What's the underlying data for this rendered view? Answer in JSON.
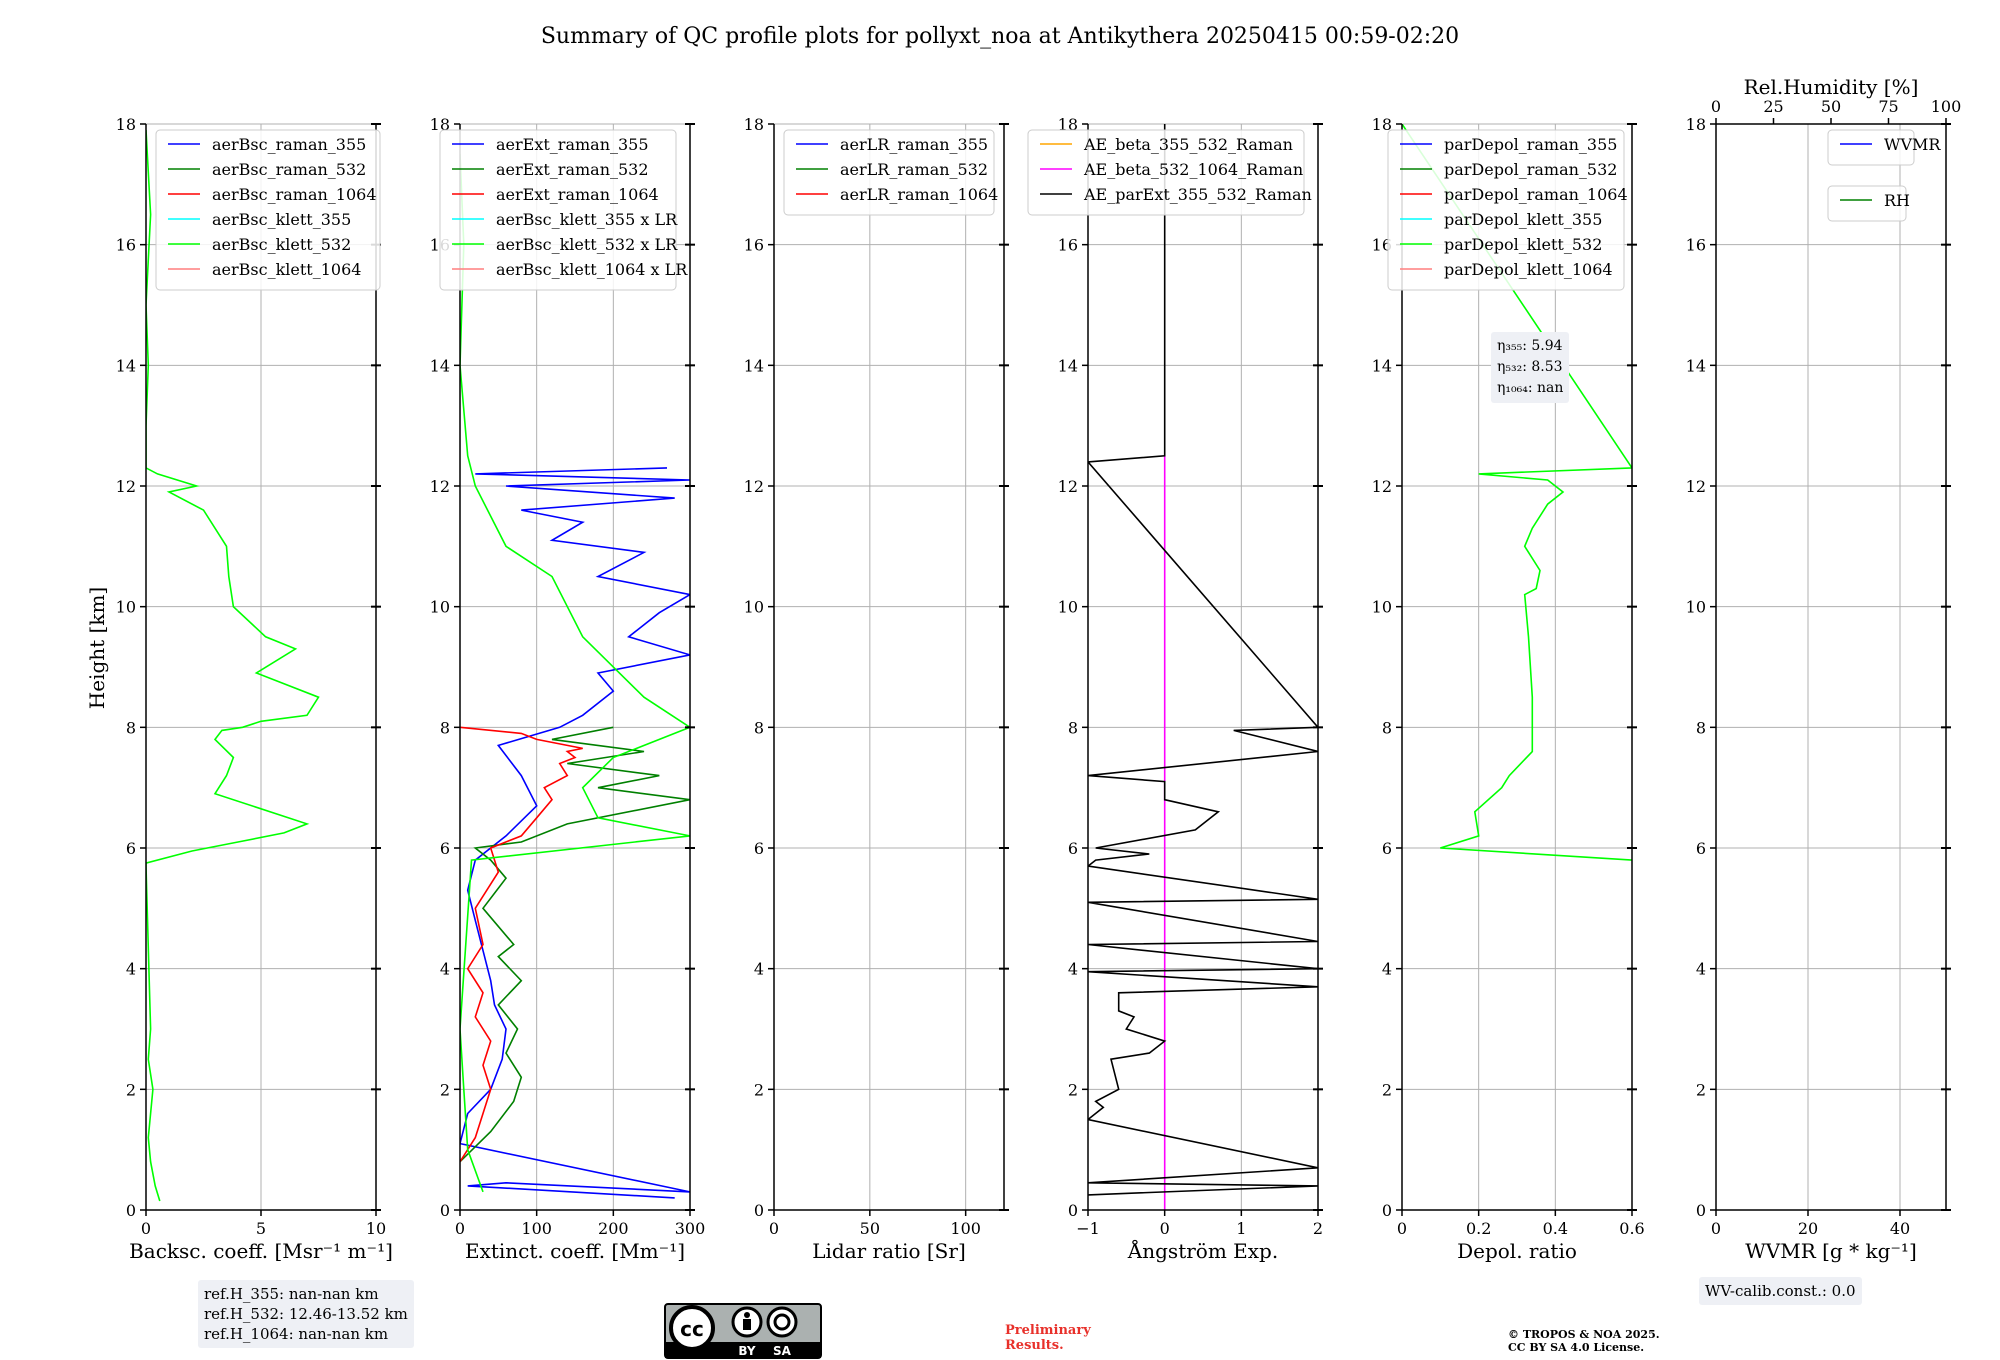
{
  "title": "Summary of QC profile plots for pollyxt_noa at Antikythera 20250415 00:59-02:20",
  "y_axis_label": "Height [km]",
  "chart_data": [
    {
      "type": "line",
      "xlabel": "Backsc. coeff. [Msr⁻¹ m⁻¹]",
      "xlim": [
        0,
        10
      ],
      "xticks": [
        0,
        5,
        10
      ],
      "ylim": [
        0,
        18
      ],
      "yticks": [
        0,
        2,
        4,
        6,
        8,
        10,
        12,
        14,
        16,
        18
      ],
      "legend": [
        "aerBsc_raman_355",
        "aerBsc_raman_532",
        "aerBsc_raman_1064",
        "aerBsc_klett_355",
        "aerBsc_klett_532",
        "aerBsc_klett_1064"
      ],
      "legend_colors": [
        "#0000ff",
        "#008000",
        "#ff0000",
        "#00ffff",
        "#00ff00",
        "#ff7f7f"
      ],
      "series": [
        {
          "name": "aerBsc_klett_532",
          "color": "#00ff00",
          "x": [
            0.6,
            0.4,
            0.2,
            0.1,
            0.3,
            0.1,
            0.2,
            0.0,
            0.0,
            2.0,
            4.0,
            6.0,
            7.0,
            3.0,
            3.5,
            3.8,
            3.0,
            3.3,
            4.2,
            5.0,
            7.0,
            7.5,
            4.8,
            6.5,
            5.2,
            3.8,
            3.6,
            3.5,
            2.5,
            1.0,
            2.2,
            0.5,
            0.0,
            0.0,
            0.1,
            0.0,
            0.2,
            0.0
          ],
          "y": [
            0.15,
            0.4,
            0.8,
            1.2,
            2.0,
            2.5,
            3.0,
            5.7,
            5.75,
            5.95,
            6.1,
            6.25,
            6.4,
            6.9,
            7.2,
            7.5,
            7.8,
            7.95,
            8.0,
            8.1,
            8.2,
            8.5,
            8.9,
            9.3,
            9.5,
            10.0,
            10.5,
            11.0,
            11.6,
            11.9,
            12.0,
            12.2,
            12.3,
            13.0,
            14.0,
            15.0,
            16.5,
            17.9
          ]
        }
      ],
      "annotation": [
        "ref.H_355: nan-nan km",
        "ref.H_532: 12.46-13.52 km",
        "ref.H_1064: nan-nan km"
      ]
    },
    {
      "type": "line",
      "xlabel": "Extinct. coeff. [Mm⁻¹]",
      "xlim": [
        0,
        300
      ],
      "xticks": [
        0,
        100,
        200,
        300
      ],
      "ylim": [
        0,
        18
      ],
      "yticks": [
        0,
        2,
        4,
        6,
        8,
        10,
        12,
        14,
        16,
        18
      ],
      "legend": [
        "aerExt_raman_355",
        "aerExt_raman_532",
        "aerExt_raman_1064",
        "aerBsc_klett_355 x LR",
        "aerBsc_klett_532 x LR",
        "aerBsc_klett_1064 x LR"
      ],
      "legend_colors": [
        "#0000ff",
        "#008000",
        "#ff0000",
        "#00ffff",
        "#00ff00",
        "#ff7f7f"
      ],
      "series": [
        {
          "name": "aerExt_raman_355",
          "color": "#0000ff",
          "x": [
            280,
            10,
            60,
            300,
            0,
            10,
            40,
            55,
            60,
            45,
            40,
            30,
            20,
            10,
            20,
            60,
            100,
            80,
            50,
            130,
            160,
            200,
            180,
            300,
            220,
            260,
            300,
            180,
            240,
            120,
            160,
            80,
            280,
            60,
            300,
            20,
            270
          ],
          "y": [
            0.2,
            0.4,
            0.45,
            0.3,
            1.1,
            1.6,
            2.0,
            2.5,
            3.0,
            3.4,
            3.8,
            4.3,
            4.8,
            5.3,
            5.8,
            6.2,
            6.7,
            7.2,
            7.7,
            8.0,
            8.2,
            8.6,
            8.9,
            9.2,
            9.5,
            9.9,
            10.2,
            10.5,
            10.9,
            11.1,
            11.4,
            11.6,
            11.8,
            12.0,
            12.1,
            12.2,
            12.3
          ]
        },
        {
          "name": "aerExt_raman_532",
          "color": "#008000",
          "x": [
            0,
            40,
            70,
            80,
            60,
            75,
            50,
            80,
            50,
            70,
            30,
            60,
            40,
            20,
            80,
            140,
            300,
            180,
            260,
            140,
            240,
            120,
            200
          ],
          "y": [
            0.8,
            1.3,
            1.8,
            2.2,
            2.6,
            3.0,
            3.4,
            3.8,
            4.2,
            4.4,
            5.0,
            5.5,
            5.8,
            6.0,
            6.1,
            6.4,
            6.8,
            7.0,
            7.2,
            7.4,
            7.6,
            7.8,
            8.0
          ]
        },
        {
          "name": "aerExt_raman_1064",
          "color": "#ff0000",
          "x": [
            0,
            20,
            30,
            40,
            30,
            40,
            20,
            30,
            10,
            30,
            20,
            50,
            40,
            80,
            100,
            120,
            110,
            140,
            130,
            150,
            140,
            160,
            140,
            100,
            80,
            0
          ],
          "y": [
            0.8,
            1.2,
            1.6,
            2.0,
            2.4,
            2.8,
            3.2,
            3.6,
            4.0,
            4.4,
            5.0,
            5.6,
            6.0,
            6.2,
            6.5,
            6.8,
            7.0,
            7.2,
            7.4,
            7.5,
            7.6,
            7.65,
            7.7,
            7.8,
            7.9,
            8.0
          ]
        },
        {
          "name": "aerBsc_klett_532 x LR",
          "color": "#00ff00",
          "x": [
            30,
            10,
            5,
            0,
            15,
            300,
            180,
            160,
            200,
            300,
            240,
            160,
            120,
            60,
            20,
            10,
            0,
            5,
            0
          ],
          "y": [
            0.3,
            1.0,
            2.0,
            3.0,
            5.8,
            6.2,
            6.5,
            7.0,
            7.5,
            8.0,
            8.5,
            9.5,
            10.5,
            11.0,
            12.0,
            12.5,
            14.0,
            16.0,
            17.5
          ]
        }
      ]
    },
    {
      "type": "line",
      "xlabel": "Lidar ratio [Sr]",
      "xlim": [
        0,
        120
      ],
      "xticks": [
        0,
        50,
        100
      ],
      "ylim": [
        0,
        18
      ],
      "yticks": [
        0,
        2,
        4,
        6,
        8,
        10,
        12,
        14,
        16,
        18
      ],
      "legend": [
        "aerLR_raman_355",
        "aerLR_raman_532",
        "aerLR_raman_1064"
      ],
      "legend_colors": [
        "#0000ff",
        "#008000",
        "#ff0000"
      ],
      "series": []
    },
    {
      "type": "line",
      "xlabel": "Ångström Exp.",
      "xlim": [
        -1,
        2
      ],
      "xticks": [
        -1,
        0,
        1,
        2
      ],
      "ylim": [
        0,
        18
      ],
      "yticks": [
        0,
        2,
        4,
        6,
        8,
        10,
        12,
        14,
        16,
        18
      ],
      "legend": [
        "AE_beta_355_532_Raman",
        "AE_beta_532_1064_Raman",
        "AE_parExt_355_532_Raman"
      ],
      "legend_colors": [
        "#ffa500",
        "#ff00ff",
        "#000000"
      ],
      "series": [
        {
          "name": "AE_beta_532_1064_Raman",
          "color": "#ff00ff",
          "x": [
            0,
            0
          ],
          "y": [
            0,
            12.5
          ]
        },
        {
          "name": "AE_parExt_355_532_Raman",
          "color": "#000000",
          "x": [
            -1,
            2,
            -1,
            2,
            -1,
            -0.8,
            -0.9,
            -0.6,
            -0.7,
            -0.2,
            0,
            -0.5,
            -0.4,
            -0.6,
            -0.6,
            2,
            -1,
            2,
            -1,
            2,
            -1,
            2,
            -1,
            -0.9,
            -0.2,
            -0.9,
            0.4,
            0.7,
            0,
            0,
            -1,
            2,
            0.9,
            2,
            -1,
            0,
            0
          ],
          "y": [
            0.25,
            0.4,
            0.45,
            0.7,
            1.5,
            1.7,
            1.8,
            2.0,
            2.5,
            2.6,
            2.8,
            3.0,
            3.2,
            3.3,
            3.6,
            3.7,
            3.95,
            4.0,
            4.4,
            4.45,
            5.1,
            5.15,
            5.7,
            5.8,
            5.9,
            6.0,
            6.3,
            6.6,
            6.8,
            7.1,
            7.2,
            7.6,
            7.95,
            8.0,
            12.4,
            12.5,
            18.0
          ]
        }
      ]
    },
    {
      "type": "line",
      "xlabel": "Depol. ratio",
      "xlim": [
        0,
        0.6
      ],
      "xticks": [
        0.0,
        0.2,
        0.4,
        0.6
      ],
      "ylim": [
        0,
        18
      ],
      "yticks": [
        0,
        2,
        4,
        6,
        8,
        10,
        12,
        14,
        16,
        18
      ],
      "legend": [
        "parDepol_raman_355",
        "parDepol_raman_532",
        "parDepol_raman_1064",
        "parDepol_klett_355",
        "parDepol_klett_532",
        "parDepol_klett_1064"
      ],
      "legend_colors": [
        "#0000ff",
        "#008000",
        "#ff0000",
        "#00ffff",
        "#00ff00",
        "#ff7f7f"
      ],
      "annotation": [
        "η₃₅₅: 5.94",
        "η₅₃₂: 8.53",
        "η₁₀₆₄: nan"
      ],
      "series": [
        {
          "name": "parDepol_klett_532",
          "color": "#00ff00",
          "x": [
            0.6,
            0.1,
            0.2,
            0.19,
            0.26,
            0.28,
            0.34,
            0.34,
            0.33,
            0.32,
            0.35,
            0.36,
            0.32,
            0.34,
            0.38,
            0.42,
            0.4,
            0.38,
            0.2,
            0.6,
            0.0
          ],
          "y": [
            5.8,
            6.0,
            6.2,
            6.6,
            7.0,
            7.2,
            7.6,
            8.5,
            9.5,
            10.2,
            10.3,
            10.6,
            11.0,
            11.3,
            11.7,
            11.9,
            12.0,
            12.1,
            12.2,
            12.3,
            18.0
          ]
        }
      ]
    },
    {
      "type": "line",
      "xlabel": "WVMR [g * kg⁻¹]",
      "xlim": [
        0,
        50
      ],
      "xticks": [
        0,
        20,
        40
      ],
      "ylim": [
        0,
        18
      ],
      "yticks": [
        0,
        2,
        4,
        6,
        8,
        10,
        12,
        14,
        16,
        18
      ],
      "top_axis_label": "Rel.Humidity [%]",
      "top_xlim": [
        0,
        100
      ],
      "top_xticks": [
        0,
        25,
        50,
        75,
        100
      ],
      "legend": [
        "WVMR"
      ],
      "legend_colors": [
        "#0000ff"
      ],
      "legend2": [
        "RH"
      ],
      "legend2_colors": [
        "#008000"
      ],
      "annotation": [
        "WV-calib.const.: 0.0"
      ],
      "series": []
    }
  ],
  "footer": {
    "preliminary": [
      "Preliminary",
      "Results."
    ],
    "copyright": [
      "© TROPOS & NOA 2025.",
      "CC BY SA 4.0 License."
    ],
    "license_labels": [
      "BY",
      "SA"
    ]
  }
}
